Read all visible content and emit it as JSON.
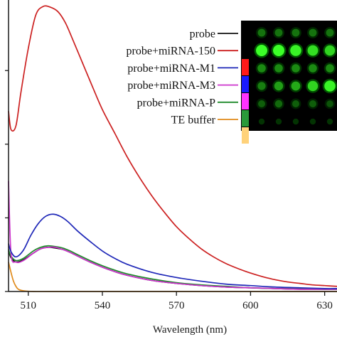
{
  "chart_data": {
    "type": "line",
    "xlabel": "Wavelength (nm)",
    "ylabel": "",
    "xlim": [
      502,
      635
    ],
    "ylim": [
      0,
      3.9
    ],
    "x_ticks": [
      510,
      540,
      570,
      600,
      630
    ],
    "y_ticks": [
      0,
      1,
      2,
      3
    ],
    "series": [
      {
        "name": "probe",
        "color": "#111111",
        "x": [
          502,
          503,
          505,
          508,
          512,
          515,
          518,
          521,
          524,
          527,
          530,
          535,
          540,
          545,
          550,
          560,
          570,
          580,
          590,
          600,
          610,
          620,
          630,
          635
        ],
        "y": [
          0.55,
          0.46,
          0.4,
          0.43,
          0.52,
          0.58,
          0.6,
          0.59,
          0.57,
          0.53,
          0.48,
          0.4,
          0.33,
          0.27,
          0.22,
          0.15,
          0.11,
          0.08,
          0.06,
          0.05,
          0.04,
          0.03,
          0.03,
          0.03
        ]
      },
      {
        "name": "probe+miRNA-150",
        "color": "#cc2020",
        "x": [
          502,
          503,
          505,
          507,
          510,
          513,
          516,
          519,
          522,
          525,
          528,
          532,
          536,
          540,
          545,
          550,
          555,
          560,
          565,
          570,
          575,
          580,
          585,
          590,
          595,
          600,
          605,
          610,
          615,
          620,
          625,
          630,
          635
        ],
        "y": [
          2.45,
          2.2,
          2.25,
          2.7,
          3.3,
          3.75,
          3.87,
          3.86,
          3.8,
          3.65,
          3.42,
          3.1,
          2.78,
          2.47,
          2.15,
          1.83,
          1.55,
          1.3,
          1.08,
          0.88,
          0.72,
          0.58,
          0.47,
          0.38,
          0.31,
          0.25,
          0.2,
          0.16,
          0.13,
          0.11,
          0.09,
          0.08,
          0.07
        ]
      },
      {
        "name": "probe+miRNA-M1",
        "color": "#1f28b8",
        "x": [
          502,
          503,
          505,
          508,
          511,
          514,
          517,
          520,
          523,
          526,
          530,
          535,
          540,
          545,
          550,
          560,
          570,
          580,
          590,
          600,
          610,
          620,
          630,
          635
        ],
        "y": [
          0.65,
          0.54,
          0.47,
          0.56,
          0.76,
          0.92,
          1.02,
          1.05,
          1.02,
          0.95,
          0.82,
          0.68,
          0.55,
          0.45,
          0.37,
          0.26,
          0.19,
          0.14,
          0.1,
          0.08,
          0.06,
          0.05,
          0.04,
          0.04
        ]
      },
      {
        "name": "probe+miRNA-M3",
        "color": "#cc33cc",
        "x": [
          502,
          503,
          505,
          508,
          512,
          515,
          518,
          521,
          524,
          527,
          530,
          535,
          540,
          545,
          550,
          560,
          570,
          580,
          590,
          600,
          610,
          620,
          630,
          635
        ],
        "y": [
          1.5,
          0.52,
          0.4,
          0.42,
          0.52,
          0.58,
          0.6,
          0.6,
          0.57,
          0.53,
          0.48,
          0.4,
          0.33,
          0.27,
          0.22,
          0.15,
          0.11,
          0.08,
          0.06,
          0.05,
          0.04,
          0.03,
          0.03,
          0.03
        ]
      },
      {
        "name": "probe+miRNA-P",
        "color": "#1e8a2a",
        "x": [
          502,
          503,
          505,
          508,
          512,
          515,
          518,
          521,
          524,
          527,
          530,
          535,
          540,
          545,
          550,
          560,
          570,
          580,
          590,
          600,
          610,
          620,
          630,
          635
        ],
        "y": [
          0.57,
          0.48,
          0.42,
          0.45,
          0.55,
          0.6,
          0.62,
          0.61,
          0.59,
          0.55,
          0.5,
          0.42,
          0.35,
          0.29,
          0.24,
          0.17,
          0.12,
          0.09,
          0.07,
          0.05,
          0.04,
          0.04,
          0.03,
          0.03
        ]
      },
      {
        "name": "TE buffer",
        "color": "#e08a1a",
        "x": [
          502,
          503,
          504,
          505,
          506,
          508,
          512,
          520,
          540,
          560,
          580,
          600,
          620,
          635
        ],
        "y": [
          0.4,
          0.26,
          0.14,
          0.07,
          0.03,
          0.01,
          0.0,
          0.0,
          0.0,
          0.0,
          0.0,
          0.0,
          0.0,
          0.0
        ]
      }
    ],
    "legend": {
      "position": "top-right",
      "swatch_colors": [
        "#000000",
        "#ff1a1a",
        "#1a1aff",
        "#ff33ff",
        "#2a9a3a",
        "#ffd27a"
      ]
    },
    "inset": {
      "description": "fluorescence dot array",
      "rows": 6,
      "cols": 5,
      "background": "#000000",
      "intensity": [
        [
          0.35,
          0.35,
          0.35,
          0.35,
          0.35
        ],
        [
          1.0,
          1.0,
          0.95,
          0.85,
          0.8
        ],
        [
          0.45,
          0.45,
          0.45,
          0.45,
          0.45
        ],
        [
          0.4,
          0.55,
          0.6,
          0.8,
          0.95
        ],
        [
          0.25,
          0.3,
          0.25,
          0.25,
          0.2
        ],
        [
          0.05,
          0.05,
          0.05,
          0.05,
          0.05
        ]
      ]
    }
  }
}
